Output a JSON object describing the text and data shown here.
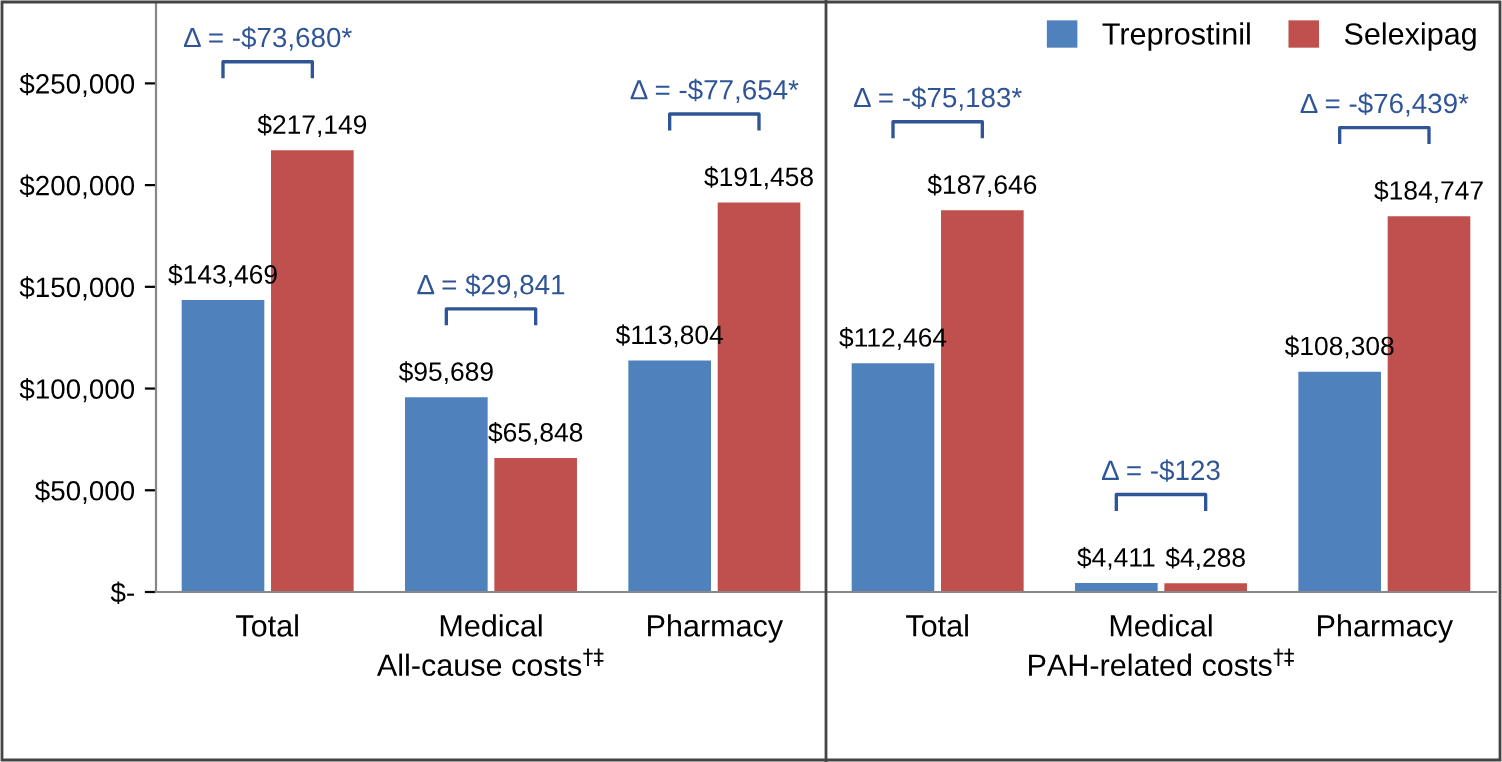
{
  "chart_data": [
    {
      "type": "bar",
      "categories": [
        "Total",
        "Medical",
        "Pharmacy"
      ],
      "xlabel": "All-cause costs$^{†‡}$",
      "series": [
        {
          "color": "#4f81bd",
          "values": [
            143469,
            95689,
            113804
          ],
          "value_labels": [
            "$143,469",
            "$95,689",
            "$113,804"
          ]
        },
        {
          "color": "#c0504d",
          "values": [
            217149,
            65848,
            191458
          ],
          "value_labels": [
            "$217,149",
            "$65,848",
            "$191,458"
          ]
        }
      ],
      "annotations": [
        "Δ = -$73,680*",
        "Δ = $29,841",
        "Δ = -$77,654*"
      ],
      "ylim": [
        0,
        290000
      ],
      "yticks": [
        {
          "value": 0,
          "label": "$-"
        },
        {
          "value": 50000,
          "label": "$50,000"
        },
        {
          "value": 100000,
          "label": "$100,000"
        },
        {
          "value": 150000,
          "label": "$150,000"
        },
        {
          "value": 200000,
          "label": "$200,000"
        },
        {
          "value": 250000,
          "label": "$250,000"
        }
      ]
    },
    {
      "type": "bar",
      "categories": [
        "Total",
        "Medical",
        "Pharmacy"
      ],
      "xlabel": "PAH-related costs$^{†‡}$",
      "series": [
        {
          "name": "Treprostinil",
          "color": "#4f81bd",
          "values": [
            112464,
            4411,
            108308
          ],
          "value_labels": [
            "$112,464",
            "$4,411",
            "$108,308"
          ]
        },
        {
          "name": "Selexipag",
          "color": "#c0504d",
          "values": [
            187646,
            4288,
            184747
          ],
          "value_labels": [
            "$187,646",
            "$4,288",
            "$184,747"
          ]
        }
      ],
      "annotations": [
        "Δ = -$75,183*",
        "Δ = -$123",
        "Δ = -$76,439*"
      ],
      "ylim": [
        0,
        290000
      ],
      "tick_labels": "x",
      "legend": "top right"
    }
  ]
}
